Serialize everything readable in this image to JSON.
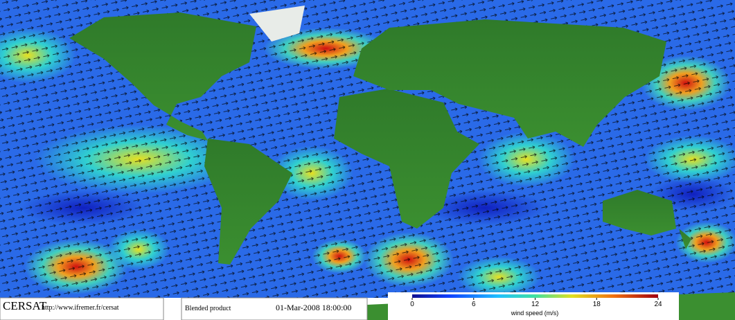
{
  "footer": {
    "logo": "CERSAT",
    "url": "http://www.ifremer.fr/cersat",
    "product": "Blended product",
    "date": "01-Mar-2008 18:00:00"
  },
  "colorbar": {
    "label": "wind speed (m/s)",
    "range": [
      0,
      24
    ],
    "ticks": [
      0,
      6,
      12,
      18,
      24
    ]
  }
}
